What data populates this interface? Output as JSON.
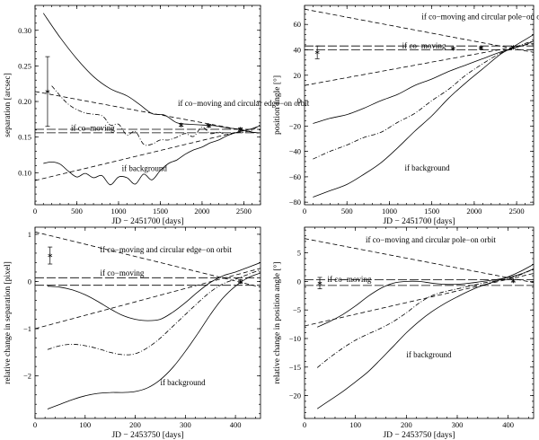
{
  "chart_data": [
    {
      "type": "line",
      "xlabel": "JD − 2451700 [days]",
      "ylabel": "separation [arcsec]",
      "xlim": [
        0,
        2700
      ],
      "ylim": [
        0.055,
        0.335
      ],
      "xticks": [
        0,
        500,
        1000,
        1500,
        2000,
        2500
      ],
      "yticks": [
        0.1,
        0.15,
        0.2,
        0.25,
        0.3
      ],
      "ytick_labels": [
        "0.10",
        "0.15",
        "0.20",
        "0.25",
        "0.30"
      ],
      "annotations": [
        {
          "text": "if co−moving and circular edge−on orbit",
          "x": 1710,
          "y": 0.194
        },
        {
          "text": "if co−moving",
          "x": 430,
          "y": 0.159
        },
        {
          "text": "if background",
          "x": 1040,
          "y": 0.102
        }
      ],
      "series": [
        {
          "name": "background",
          "style": "solid",
          "x": [
            100,
            300,
            500,
            700,
            900,
            1100,
            1250,
            1400,
            1550,
            1700,
            1850,
            2000,
            2150,
            2300,
            2450,
            2600,
            2700
          ],
          "y": [
            0.324,
            0.29,
            0.26,
            0.235,
            0.218,
            0.208,
            0.196,
            0.183,
            0.181,
            0.17,
            0.168,
            0.167,
            0.166,
            0.163,
            0.161,
            0.157,
            0.156
          ]
        },
        {
          "name": "background lower",
          "style": "solid",
          "x": [
            100,
            200,
            300,
            400,
            500,
            600,
            700,
            800,
            900,
            1000,
            1100,
            1200,
            1300,
            1400,
            1500,
            1600,
            1700,
            1800,
            1900,
            2000,
            2100,
            2200,
            2300,
            2400,
            2500,
            2600,
            2700
          ],
          "y": [
            0.113,
            0.115,
            0.112,
            0.102,
            0.094,
            0.099,
            0.093,
            0.096,
            0.083,
            0.094,
            0.093,
            0.084,
            0.098,
            0.09,
            0.103,
            0.113,
            0.118,
            0.126,
            0.132,
            0.136,
            0.142,
            0.146,
            0.152,
            0.156,
            0.159,
            0.162,
            0.166
          ]
        },
        {
          "name": "background dash-dot",
          "style": "dashdot",
          "x": [
            200,
            400,
            600,
            800,
            900,
            1000,
            1100,
            1200,
            1300,
            1400,
            1500,
            1600,
            1700,
            1800,
            1900,
            2000,
            2100,
            2200,
            2300,
            2400,
            2500,
            2600,
            2700
          ],
          "y": [
            0.222,
            0.196,
            0.184,
            0.18,
            0.167,
            0.168,
            0.153,
            0.158,
            0.14,
            0.14,
            0.146,
            0.146,
            0.15,
            0.155,
            0.151,
            0.164,
            0.155,
            0.157,
            0.153,
            0.156,
            0.157,
            0.16,
            0.168
          ]
        },
        {
          "name": "co-moving upper",
          "style": "longdash",
          "x": [
            0,
            2700
          ],
          "y": [
            0.161,
            0.161
          ]
        },
        {
          "name": "co-moving lower",
          "style": "longdash",
          "x": [
            0,
            2700
          ],
          "y": [
            0.156,
            0.156
          ]
        },
        {
          "name": "circular edge-on orbit",
          "style": "dash",
          "x": [
            0,
            2700
          ],
          "y": [
            0.214,
            0.155
          ]
        },
        {
          "name": "circular orbit lower",
          "style": "dash",
          "x": [
            0,
            2450
          ],
          "y": [
            0.089,
            0.158
          ]
        }
      ],
      "points": [
        {
          "x": 150,
          "y": 0.214,
          "yerr": 0.049
        },
        {
          "x": 1750,
          "y": 0.167,
          "yerr": 0.002
        },
        {
          "x": 2080,
          "y": 0.166,
          "yerr": 0.002
        },
        {
          "x": 2460,
          "y": 0.161,
          "yerr": 0.002
        }
      ]
    },
    {
      "type": "line",
      "xlabel": "JD − 2451700 [days]",
      "ylabel": "position angle [°]",
      "xlim": [
        0,
        2700
      ],
      "ylim": [
        -82,
        75
      ],
      "xticks": [
        0,
        500,
        1000,
        1500,
        2000,
        2500
      ],
      "yticks": [
        -80,
        -60,
        -40,
        -20,
        0,
        20,
        40,
        60
      ],
      "ytick_labels": [
        "−80",
        "−60",
        "−40",
        "−20",
        "0",
        "20",
        "40",
        "60"
      ],
      "annotations": [
        {
          "text": "if co−moving and circular pole−on orbit",
          "x": 1380,
          "y": 64
        },
        {
          "text": "if co−moving",
          "x": 1150,
          "y": 41
        },
        {
          "text": "if background",
          "x": 1180,
          "y": -55
        }
      ],
      "series": [
        {
          "name": "background",
          "style": "solid",
          "x": [
            100,
            300,
            500,
            700,
            900,
            1100,
            1300,
            1500,
            1700,
            1900,
            2100,
            2300,
            2450,
            2600,
            2700
          ],
          "y": [
            -76,
            -71,
            -66,
            -58,
            -49,
            -37,
            -24,
            -12,
            2,
            14,
            25,
            36,
            42,
            48,
            52
          ]
        },
        {
          "name": "background dash-dot",
          "style": "dashdot",
          "x": [
            100,
            300,
            500,
            700,
            900,
            1100,
            1300,
            1500,
            1700,
            1900,
            2100,
            2300,
            2450,
            2600,
            2700
          ],
          "y": [
            -46,
            -40,
            -35,
            -29,
            -25,
            -17,
            -10,
            0,
            9,
            20,
            29,
            37,
            41,
            45,
            47
          ]
        },
        {
          "name": "background upper",
          "style": "solid",
          "x": [
            100,
            300,
            500,
            700,
            900,
            1100,
            1300,
            1500,
            1700,
            1900,
            2100,
            2300,
            2450,
            2600,
            2700
          ],
          "y": [
            -18,
            -14,
            -11,
            -6,
            0,
            5,
            12,
            17,
            23,
            28,
            33,
            38,
            41,
            44,
            47
          ]
        },
        {
          "name": "co-moving upper",
          "style": "longdash",
          "x": [
            0,
            2700
          ],
          "y": [
            43,
            43
          ]
        },
        {
          "name": "co-moving lower",
          "style": "longdash",
          "x": [
            0,
            2700
          ],
          "y": [
            40,
            40
          ]
        },
        {
          "name": "circular pole-on orbit",
          "style": "dash",
          "x": [
            0,
            2700
          ],
          "y": [
            72,
            38
          ]
        },
        {
          "name": "circular orbit lower",
          "style": "dash",
          "x": [
            0,
            2700
          ],
          "y": [
            12,
            45
          ]
        }
      ],
      "points": [
        {
          "x": 150,
          "y": 38,
          "yerr": 5
        },
        {
          "x": 1750,
          "y": 41,
          "yerr": 0.8
        },
        {
          "x": 2080,
          "y": 41.5,
          "yerr": 0.8
        },
        {
          "x": 2460,
          "y": 42,
          "yerr": 0.8
        }
      ]
    },
    {
      "type": "line",
      "xlabel": "JD − 2453750 [days]",
      "ylabel": "relative change in separation [pixel]",
      "xlim": [
        0,
        450
      ],
      "ylim": [
        -2.9,
        1.15
      ],
      "xticks": [
        0,
        100,
        200,
        300,
        400
      ],
      "yticks": [
        -2,
        -1,
        0,
        1
      ],
      "ytick_labels": [
        "−2",
        "−1",
        "0",
        "1"
      ],
      "annotations": [
        {
          "text": "if co−moving and circular edge−on orbit",
          "x": 130,
          "y": 0.62
        },
        {
          "text": "if co−moving",
          "x": 130,
          "y": 0.12
        },
        {
          "text": "if background",
          "x": 250,
          "y": -2.2
        }
      ],
      "series": [
        {
          "name": "background",
          "style": "solid",
          "x": [
            25,
            50,
            75,
            100,
            125,
            150,
            175,
            200,
            225,
            250,
            275,
            300,
            325,
            350,
            375,
            400,
            425,
            450
          ],
          "y": [
            -2.7,
            -2.6,
            -2.5,
            -2.42,
            -2.37,
            -2.35,
            -2.35,
            -2.33,
            -2.25,
            -2.08,
            -1.82,
            -1.48,
            -1.1,
            -0.7,
            -0.35,
            -0.1,
            0.08,
            0.18
          ]
        },
        {
          "name": "background dash-dot",
          "style": "dashdot",
          "x": [
            25,
            50,
            75,
            100,
            125,
            150,
            175,
            200,
            225,
            250,
            275,
            300,
            325,
            350,
            375,
            400,
            425,
            450
          ],
          "y": [
            -1.44,
            -1.36,
            -1.33,
            -1.36,
            -1.42,
            -1.5,
            -1.55,
            -1.53,
            -1.4,
            -1.2,
            -0.95,
            -0.7,
            -0.45,
            -0.22,
            -0.05,
            0.05,
            0.15,
            0.25
          ]
        },
        {
          "name": "background upper",
          "style": "solid",
          "x": [
            25,
            50,
            75,
            100,
            125,
            150,
            175,
            200,
            225,
            250,
            275,
            300,
            325,
            350,
            375,
            400,
            425,
            450
          ],
          "y": [
            -0.1,
            -0.12,
            -0.18,
            -0.28,
            -0.42,
            -0.58,
            -0.72,
            -0.8,
            -0.83,
            -0.8,
            -0.65,
            -0.45,
            -0.22,
            -0.02,
            0.12,
            0.2,
            0.3,
            0.4
          ]
        },
        {
          "name": "co-moving upper",
          "style": "longdash",
          "x": [
            0,
            450
          ],
          "y": [
            0.08,
            0.08
          ]
        },
        {
          "name": "co-moving lower",
          "style": "longdash",
          "x": [
            0,
            450
          ],
          "y": [
            -0.08,
            -0.08
          ]
        },
        {
          "name": "circular edge-on orbit",
          "style": "dash",
          "x": [
            0,
            450
          ],
          "y": [
            1.05,
            -0.12
          ]
        },
        {
          "name": "circular orbit lower",
          "style": "dash",
          "x": [
            0,
            450
          ],
          "y": [
            -1.0,
            0.28
          ]
        }
      ],
      "points": [
        {
          "x": 30,
          "y": 0.55,
          "yerr": 0.18
        },
        {
          "x": 410,
          "y": 0.0,
          "yerr": 0.04
        }
      ]
    },
    {
      "type": "line",
      "xlabel": "JD − 2453750 [days]",
      "ylabel": "relative change in position angle [°]",
      "xlim": [
        0,
        450
      ],
      "ylim": [
        -24,
        9.5
      ],
      "xticks": [
        0,
        100,
        200,
        300,
        400
      ],
      "yticks": [
        -20,
        -15,
        -10,
        -5,
        0,
        5
      ],
      "ytick_labels": [
        "−20",
        "−15",
        "−10",
        "−5",
        "0",
        "5"
      ],
      "annotations": [
        {
          "text": "if co−moving and circular pole−on orbit",
          "x": 120,
          "y": 6.8
        },
        {
          "text": "if co−moving",
          "x": 45,
          "y": -0.1
        },
        {
          "text": "if background",
          "x": 200,
          "y": -13.3
        }
      ],
      "series": [
        {
          "name": "background",
          "style": "solid",
          "x": [
            25,
            50,
            75,
            100,
            125,
            150,
            175,
            200,
            225,
            250,
            275,
            300,
            325,
            350,
            375,
            400,
            425,
            450
          ],
          "y": [
            -22.3,
            -20.8,
            -19.3,
            -17.6,
            -15.8,
            -13.6,
            -11.3,
            -9,
            -7,
            -5.3,
            -3.9,
            -2.7,
            -1.6,
            -0.7,
            0,
            0.8,
            1.8,
            3
          ]
        },
        {
          "name": "background dash-dot",
          "style": "dashdot",
          "x": [
            25,
            50,
            75,
            100,
            125,
            150,
            175,
            200,
            225,
            250,
            275,
            300,
            325,
            350,
            375,
            400,
            425,
            450
          ],
          "y": [
            -15.1,
            -13.3,
            -11.7,
            -10.3,
            -9.2,
            -8.2,
            -7,
            -5.5,
            -3.8,
            -2.5,
            -1.8,
            -1.3,
            -0.8,
            -0.3,
            0.1,
            0.5,
            1.2,
            2.2
          ]
        },
        {
          "name": "background upper",
          "style": "solid",
          "x": [
            25,
            50,
            75,
            100,
            125,
            150,
            175,
            200,
            225,
            250,
            275,
            300,
            325,
            350,
            375,
            400,
            425,
            450
          ],
          "y": [
            -8,
            -7,
            -5.8,
            -4.3,
            -2.6,
            -1.2,
            -0.3,
            0,
            0,
            -0.3,
            -0.5,
            -0.5,
            -0.3,
            0,
            0.3,
            0.7,
            1.3,
            2.2
          ]
        },
        {
          "name": "co-moving upper",
          "style": "longdash",
          "x": [
            0,
            450
          ],
          "y": [
            0.3,
            0.3
          ]
        },
        {
          "name": "co-moving lower",
          "style": "longdash",
          "x": [
            0,
            450
          ],
          "y": [
            -0.7,
            -0.7
          ]
        },
        {
          "name": "circular pole-on orbit",
          "style": "dash",
          "x": [
            0,
            450
          ],
          "y": [
            7.5,
            -0.2
          ]
        },
        {
          "name": "circular orbit lower",
          "style": "dash",
          "x": [
            0,
            450
          ],
          "y": [
            -7.8,
            1.4
          ]
        }
      ],
      "points": [
        {
          "x": 30,
          "y": -0.3,
          "yerr": 1.0
        },
        {
          "x": 410,
          "y": 0.1,
          "yerr": 0.2
        }
      ]
    }
  ]
}
